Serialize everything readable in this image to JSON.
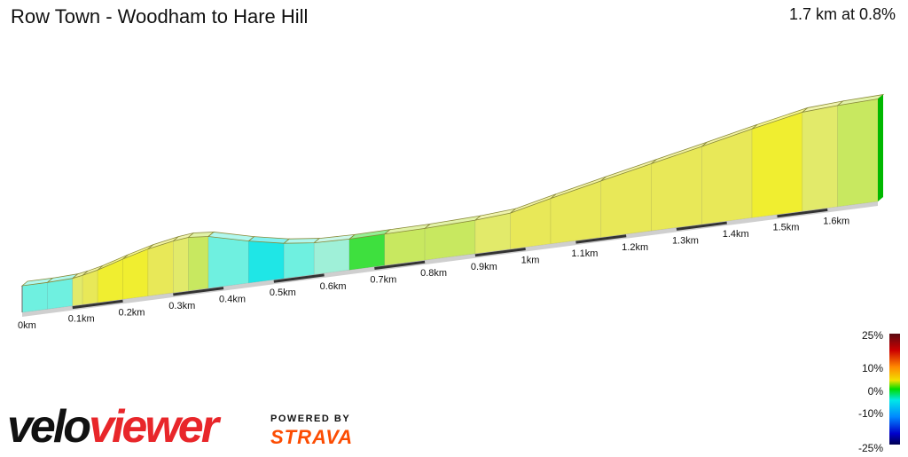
{
  "header": {
    "title": "Row Town - Woodham to Hare Hill",
    "summary": "1.7 km at 0.8%"
  },
  "branding": {
    "logo_text": "veloviewer",
    "powered_by": "POWERED BY",
    "strava": "STRAVA",
    "logo_color": "#e8262a"
  },
  "chart_data": {
    "type": "area",
    "distance_unit": "km",
    "x_ticks": [
      "0km",
      "0.1km",
      "0.2km",
      "0.3km",
      "0.4km",
      "0.5km",
      "0.6km",
      "0.7km",
      "0.8km",
      "0.9km",
      "1km",
      "1.1km",
      "1.2km",
      "1.3km",
      "1.4km",
      "1.5km",
      "1.6km"
    ],
    "xlim": [
      0,
      1.7
    ],
    "profile": [
      {
        "x": 0.0,
        "elev": 0.0,
        "gradient": -4
      },
      {
        "x": 0.05,
        "elev": 0.0,
        "gradient": -3
      },
      {
        "x": 0.1,
        "elev": 0.2,
        "gradient": 2
      },
      {
        "x": 0.12,
        "elev": 0.6,
        "gradient": 5
      },
      {
        "x": 0.15,
        "elev": 1.4,
        "gradient": 7
      },
      {
        "x": 0.2,
        "elev": 3.2,
        "gradient": 6
      },
      {
        "x": 0.25,
        "elev": 4.8,
        "gradient": 5
      },
      {
        "x": 0.3,
        "elev": 5.9,
        "gradient": 3
      },
      {
        "x": 0.33,
        "elev": 6.3,
        "gradient": 1
      },
      {
        "x": 0.37,
        "elev": 5.9,
        "gradient": -4
      },
      {
        "x": 0.45,
        "elev": 3.6,
        "gradient": -5
      },
      {
        "x": 0.52,
        "elev": 2.0,
        "gradient": -4
      },
      {
        "x": 0.58,
        "elev": 1.2,
        "gradient": -2
      },
      {
        "x": 0.65,
        "elev": 1.0,
        "gradient": 0
      },
      {
        "x": 0.72,
        "elev": 1.1,
        "gradient": 1
      },
      {
        "x": 0.8,
        "elev": 1.2,
        "gradient": 1
      },
      {
        "x": 0.9,
        "elev": 1.6,
        "gradient": 2
      },
      {
        "x": 0.97,
        "elev": 2.2,
        "gradient": 4
      },
      {
        "x": 1.05,
        "elev": 4.4,
        "gradient": 5
      },
      {
        "x": 1.15,
        "elev": 7.0,
        "gradient": 5
      },
      {
        "x": 1.25,
        "elev": 9.5,
        "gradient": 5
      },
      {
        "x": 1.35,
        "elev": 12.0,
        "gradient": 5
      },
      {
        "x": 1.45,
        "elev": 14.6,
        "gradient": 6
      },
      {
        "x": 1.55,
        "elev": 17.0,
        "gradient": 3
      },
      {
        "x": 1.62,
        "elev": 17.5,
        "gradient": 1
      },
      {
        "x": 1.7,
        "elev": 17.8,
        "gradient": 0
      }
    ],
    "gradient_legend": {
      "labels": [
        "25%",
        "10%",
        "0%",
        "-10%",
        "-25%"
      ],
      "values": [
        25,
        10,
        0,
        -10,
        -25
      ],
      "colors": [
        "#6a0a14",
        "#cc0000",
        "#ff7a00",
        "#ffe600",
        "#dde858",
        "#00dd00",
        "#00e5e5",
        "#008cff",
        "#0000cc",
        "#000060"
      ]
    }
  }
}
